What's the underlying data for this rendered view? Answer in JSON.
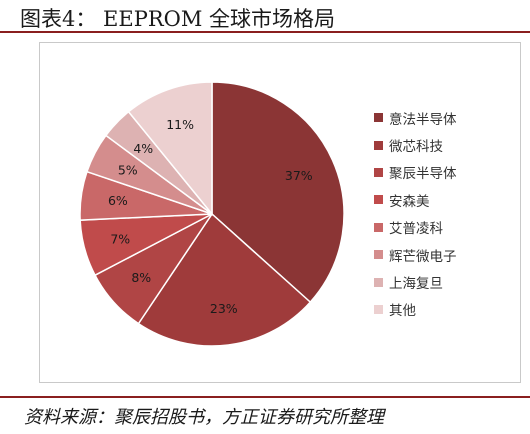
{
  "figure": {
    "title": "图表4：  EEPROM 全球市场格局",
    "source": "资料来源：聚辰招股书，方正证券研究所整理"
  },
  "chart_data": {
    "type": "pie",
    "categories": [
      "意法半导体",
      "微芯科技",
      "聚辰半导体",
      "安森美",
      "艾普凌科",
      "辉芒微电子",
      "上海复旦",
      "其他"
    ],
    "values": [
      37,
      23,
      8,
      7,
      6,
      5,
      4,
      11
    ],
    "labels": [
      "37%",
      "23%",
      "8%",
      "7%",
      "6%",
      "5%",
      "4%",
      "11%"
    ],
    "colors": [
      "#8b3535",
      "#9f3b3b",
      "#b04545",
      "#c04b4b",
      "#c96868",
      "#d48d8d",
      "#ddb2b2",
      "#ecd0d0"
    ],
    "start_angle_deg": 0,
    "direction": "clockwise",
    "legend_position": "right"
  }
}
